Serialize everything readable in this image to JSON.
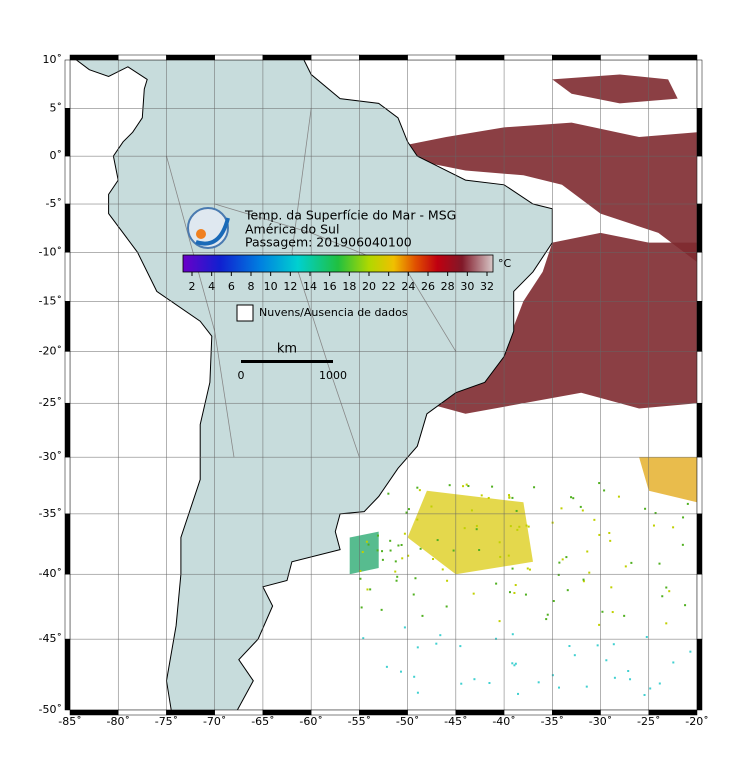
{
  "header": {
    "lines": [
      "Temp. da Superfície do Mar - MSG",
      "América do Sul",
      "Passagem: 201906040100"
    ]
  },
  "colorbar": {
    "ticks": [
      2,
      4,
      6,
      8,
      10,
      12,
      14,
      16,
      18,
      20,
      22,
      24,
      26,
      28,
      30,
      32
    ],
    "unit": "°C"
  },
  "legend": "Nuvens/Ausencia de dados",
  "scale_bar": {
    "title": "km",
    "labels": [
      "0",
      "1000"
    ]
  },
  "axes": {
    "lon": [
      {
        "value": -85,
        "label": "-85˚"
      },
      {
        "value": -80,
        "label": "-80˚"
      },
      {
        "value": -75,
        "label": "-75˚"
      },
      {
        "value": -70,
        "label": "-70˚"
      },
      {
        "value": -65,
        "label": "-65˚"
      },
      {
        "value": -60,
        "label": "-60˚"
      },
      {
        "value": -55,
        "label": "-55˚"
      },
      {
        "value": -50,
        "label": "-50˚"
      },
      {
        "value": -45,
        "label": "-45˚"
      },
      {
        "value": -40,
        "label": "-40˚"
      },
      {
        "value": -35,
        "label": "-35˚"
      },
      {
        "value": -30,
        "label": "-30˚"
      },
      {
        "value": -25,
        "label": "-25˚"
      },
      {
        "value": -20,
        "label": "-20˚"
      }
    ],
    "lat": [
      {
        "value": 10,
        "label": "10˚"
      },
      {
        "value": 5,
        "label": "5˚"
      },
      {
        "value": 0,
        "label": "0˚"
      },
      {
        "value": -5,
        "label": "-5˚"
      },
      {
        "value": -10,
        "label": "-10˚"
      },
      {
        "value": -15,
        "label": "-15˚"
      },
      {
        "value": -20,
        "label": "-20˚"
      },
      {
        "value": -25,
        "label": "-25˚"
      },
      {
        "value": -30,
        "label": "-30˚"
      },
      {
        "value": -35,
        "label": "-35˚"
      },
      {
        "value": -40,
        "label": "-40˚"
      },
      {
        "value": -45,
        "label": "-45˚"
      },
      {
        "value": -50,
        "label": "-50˚"
      }
    ]
  }
}
